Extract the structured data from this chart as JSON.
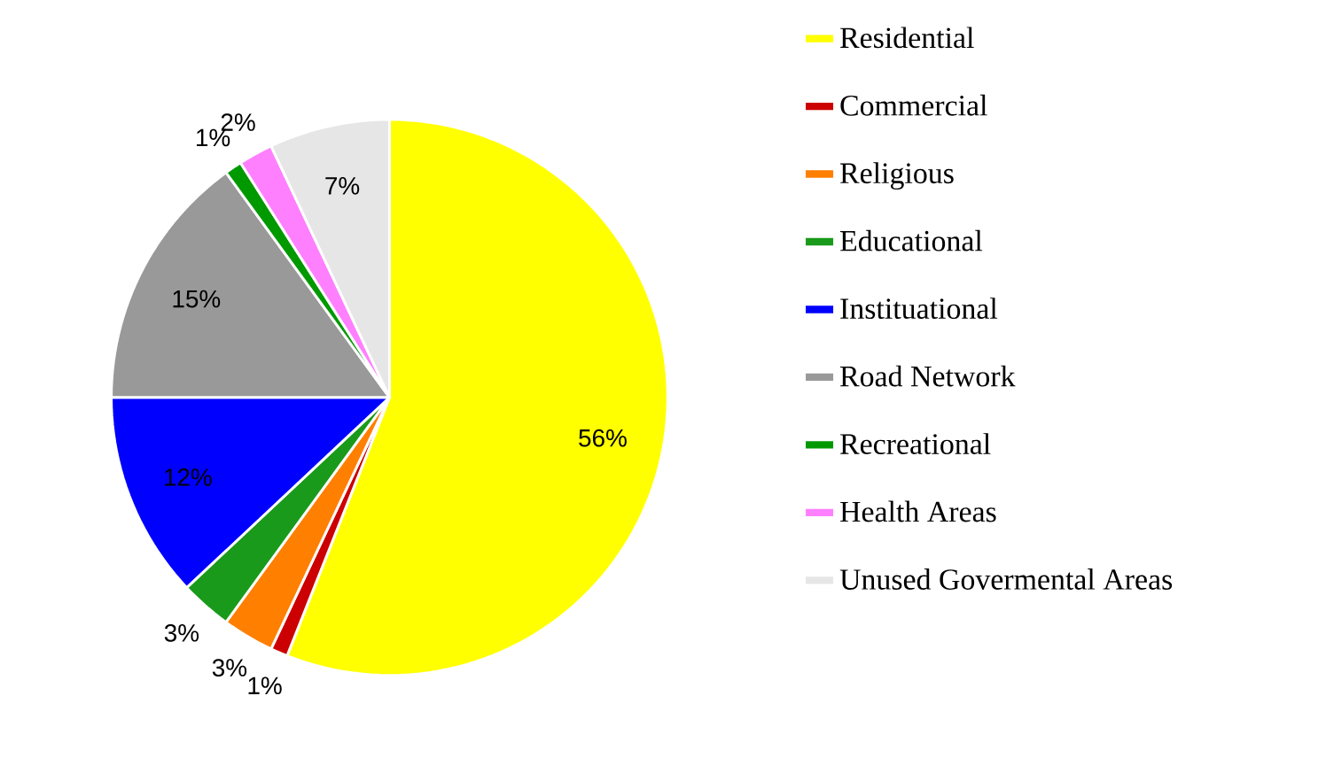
{
  "chart_data": {
    "type": "pie",
    "categories": [
      "Residential",
      "Commercial",
      "Religious",
      "Educational",
      "Instituational",
      "Road Network",
      "Recreational",
      "Health Areas",
      "Unused Govermental Areas"
    ],
    "values": [
      56,
      1,
      3,
      3,
      12,
      15,
      1,
      2,
      7
    ],
    "value_labels": [
      "56%",
      "1%",
      "3%",
      "3%",
      "12%",
      "15%",
      "1%",
      "2%",
      "7%"
    ],
    "colors": [
      "#ffff00",
      "#cc0000",
      "#ff7f00",
      "#1a9a1a",
      "#0000ff",
      "#999999",
      "#009900",
      "#ff80ff",
      "#e6e6e6"
    ],
    "legend": "right"
  }
}
